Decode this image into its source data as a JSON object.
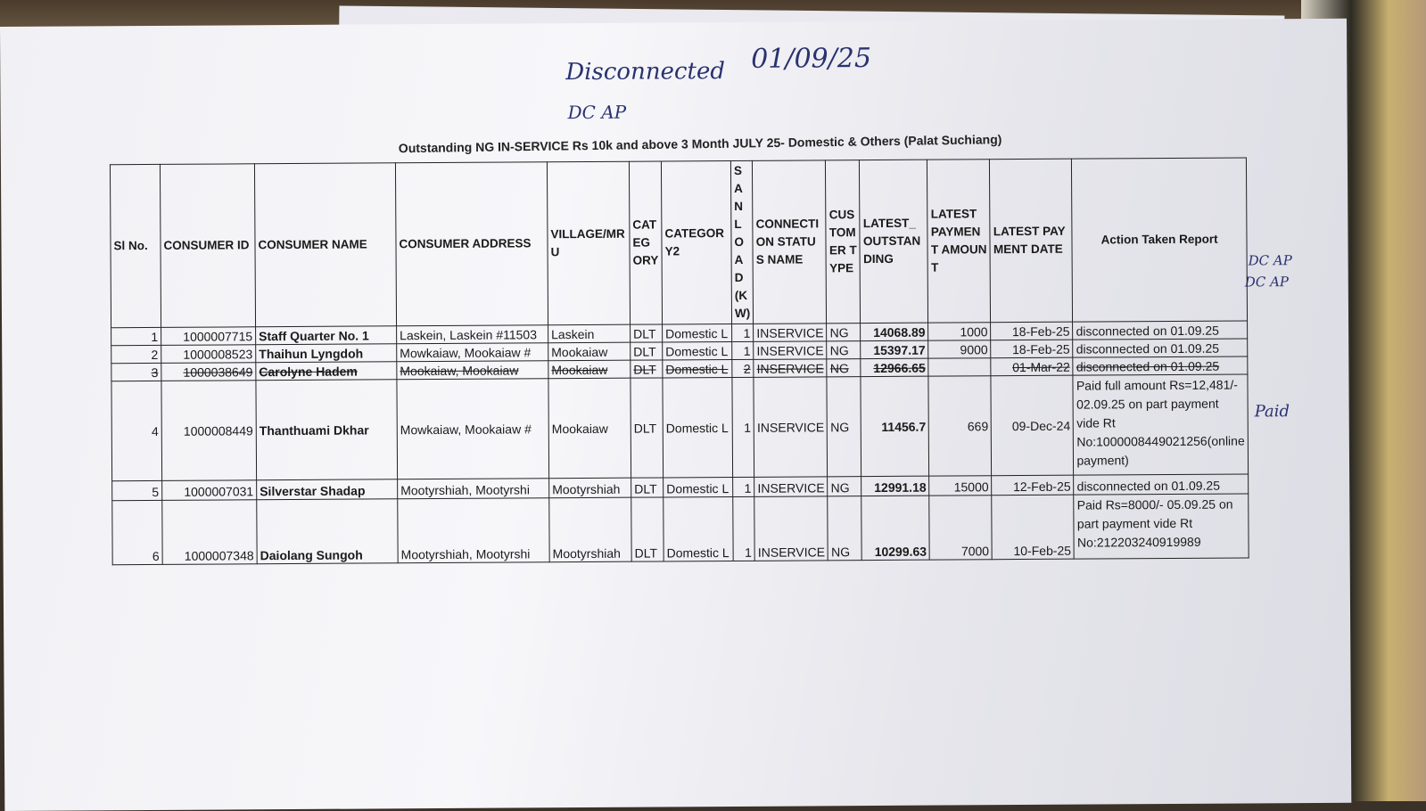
{
  "handwritten": {
    "note": "Disconnected",
    "date": "01/09/25",
    "initials": "DC AP",
    "margin_notes": [
      "DC AP",
      "DC AP",
      "Paid"
    ]
  },
  "title": "Outstanding NG IN-SERVICE Rs 10k and above 3 Month JULY 25- Domestic & Others (Palat Suchiang)",
  "columns": [
    "Sl No.",
    "CONSUMER ID",
    "CONSUMER NAME",
    "CONSUMER ADDRESS",
    "VILLAGE/MRU",
    "CATEGORY",
    "CATEGORY2",
    "SANLOAD(KW)",
    "CONNECTION STATUS NAME",
    "CUSTOMER TYPE",
    "LATEST_OUTSTANDING",
    "LATEST PAYMENT AMOUNT",
    "LATEST PAYMENT DATE",
    "Action Taken Report"
  ],
  "rows": [
    [
      "1",
      "1000007715",
      "Staff Quarter No. 1",
      "Laskein, Laskein #11503",
      "Laskein",
      "DLT",
      "Domestic L",
      "1",
      "INSERVICE",
      "NG",
      "14068.89",
      "1000",
      "18-Feb-25",
      "disconnected on 01.09.25"
    ],
    [
      "2",
      "1000008523",
      "Thaihun Lyngdoh",
      "Mowkaiaw, Mookaiaw #",
      "Mookaiaw",
      "DLT",
      "Domestic L",
      "1",
      "INSERVICE",
      "NG",
      "15397.17",
      "9000",
      "18-Feb-25",
      "disconnected on 01.09.25"
    ],
    [
      "3",
      "1000038649",
      "Carolyne Hadem",
      "Mookaiaw, Mookaiaw",
      "Mookaiaw",
      "DLT",
      "Domestic L",
      "2",
      "INSERVICE",
      "NG",
      "12966.65",
      "",
      "01-Mar-22",
      "disconnected on 01.09.25"
    ],
    [
      "4",
      "1000008449",
      "Thanthuami Dkhar",
      "Mowkaiaw, Mookaiaw #",
      "Mookaiaw",
      "DLT",
      "Domestic L",
      "1",
      "INSERVICE",
      "NG",
      "11456.7",
      "669",
      "09-Dec-24",
      "Paid full amount Rs=12,481/- 02.09.25 on part payment vide Rt No:1000008449021256(online payment)"
    ],
    [
      "5",
      "1000007031",
      "Silverstar Shadap",
      "Mootyrshiah, Mootyrshi",
      "Mootyrshiah",
      "DLT",
      "Domestic L",
      "1",
      "INSERVICE",
      "NG",
      "12991.18",
      "15000",
      "12-Feb-25",
      "disconnected on 01.09.25"
    ],
    [
      "6",
      "1000007348",
      "Daiolang Sungoh",
      "Mootyrshiah, Mootyrshi",
      "Mootyrshiah",
      "DLT",
      "Domestic L",
      "1",
      "INSERVICE",
      "NG",
      "10299.63",
      "7000",
      "10-Feb-25",
      "Paid Rs=8000/- 05.09.25 on part payment vide Rt No:212203240919989"
    ]
  ]
}
